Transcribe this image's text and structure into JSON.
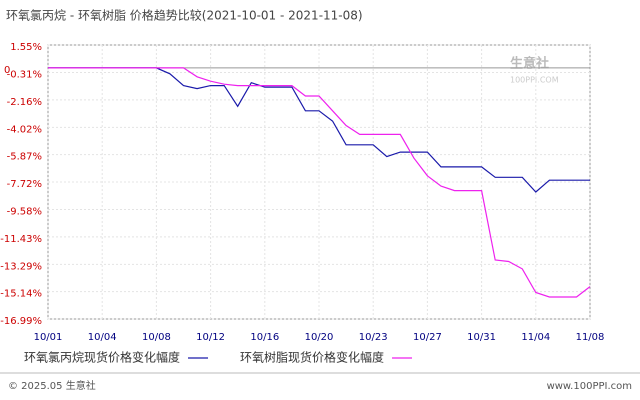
{
  "chart_data": {
    "type": "line",
    "title": "环氧氯丙烷 - 环氧树脂 价格趋势比较(2021-10-01 - 2021-11-08)",
    "zero_label": "0",
    "watermark": "生意社",
    "watermark_url": "100PPI.COM",
    "footer_left": "© 2025.05 生意社",
    "footer_right": "www.100PPI.com",
    "categories": [
      "10/01",
      null,
      null,
      null,
      "10/04",
      null,
      null,
      null,
      "10/08",
      null,
      null,
      null,
      "10/12",
      null,
      null,
      null,
      "10/16",
      null,
      null,
      null,
      "10/20",
      null,
      null,
      null,
      "10/23",
      null,
      null,
      null,
      "10/27",
      null,
      null,
      null,
      "10/31",
      null,
      null,
      null,
      "11/04",
      null,
      null,
      null,
      "11/08"
    ],
    "series": [
      {
        "name": "环氧氯丙烷现货价格变化幅度",
        "color": "#1a1aaa",
        "values": [
          0,
          0,
          0,
          0,
          0,
          0,
          0,
          0,
          0,
          -0.4,
          -1.2,
          -1.4,
          -1.2,
          -1.2,
          -2.6,
          -1.0,
          -1.3,
          -1.3,
          -1.3,
          -2.9,
          -2.9,
          -3.6,
          -5.2,
          -5.2,
          -5.2,
          -6.0,
          -5.7,
          -5.7,
          -5.7,
          -6.7,
          -6.7,
          -6.7,
          -6.7,
          -7.4,
          -7.4,
          -7.4,
          -8.4,
          -7.6,
          -7.6,
          -7.6,
          -7.6
        ]
      },
      {
        "name": "环氧树脂现货价格变化幅度",
        "color": "#ee22ee",
        "values": [
          0,
          0,
          0,
          0,
          0,
          0,
          0,
          0,
          0,
          0,
          0,
          -0.6,
          -0.9,
          -1.1,
          -1.2,
          -1.2,
          -1.2,
          -1.2,
          -1.2,
          -1.9,
          -1.9,
          -2.9,
          -3.9,
          -4.5,
          -4.5,
          -4.5,
          -4.5,
          -6.1,
          -7.3,
          -8.0,
          -8.3,
          -8.3,
          -8.3,
          -13.0,
          -13.1,
          -13.6,
          -15.2,
          -15.5,
          -15.5,
          -15.5,
          -14.8
        ]
      }
    ],
    "ylim": [
      -16.99,
      1.55
    ],
    "yticks": [
      {
        "value": 1.55,
        "label": "1.55%"
      },
      {
        "value": -0.31,
        "label": "-0.31%"
      },
      {
        "value": -2.16,
        "label": "-2.16%"
      },
      {
        "value": -4.02,
        "label": "-4.02%"
      },
      {
        "value": -5.87,
        "label": "-5.87%"
      },
      {
        "value": -7.72,
        "label": "-7.72%"
      },
      {
        "value": -9.58,
        "label": "-9.58%"
      },
      {
        "value": -11.43,
        "label": "-11.43%"
      },
      {
        "value": -13.29,
        "label": "-13.29%"
      },
      {
        "value": -15.14,
        "label": "-15.14%"
      },
      {
        "value": -16.99,
        "label": "-16.99%"
      }
    ],
    "grid": true
  }
}
